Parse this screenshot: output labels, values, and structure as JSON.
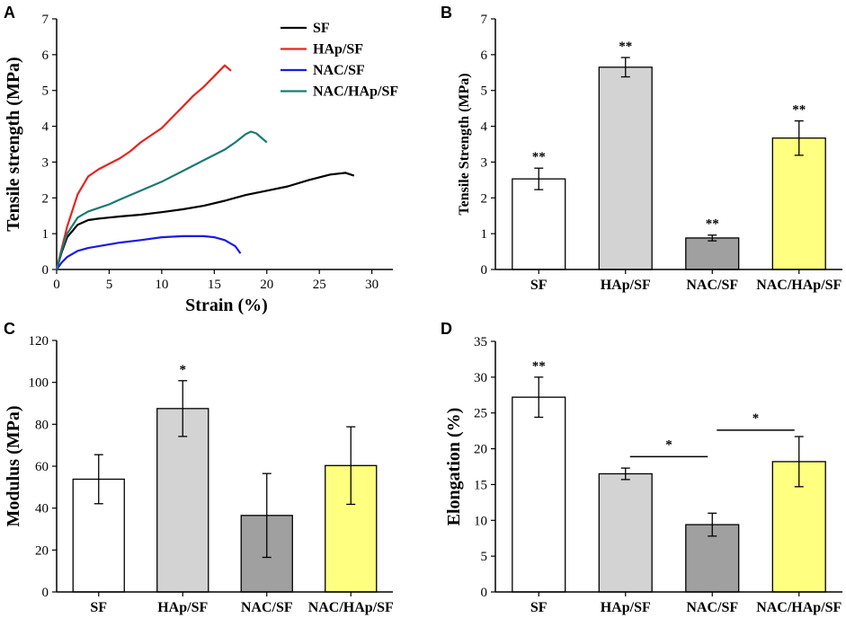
{
  "chart_data": [
    {
      "panel": "A",
      "type": "line",
      "xlabel": "Strain (%)",
      "ylabel": "Tensile strength (MPa)",
      "xlim": [
        0,
        32
      ],
      "ylim": [
        0,
        7
      ],
      "xticks": [
        0,
        5,
        10,
        15,
        20,
        25,
        30
      ],
      "yticks": [
        0,
        1,
        2,
        3,
        4,
        5,
        6,
        7
      ],
      "legend_position": "top-right",
      "series": [
        {
          "name": "SF",
          "color": "#000000",
          "x": [
            0,
            0.5,
            1,
            2,
            3,
            4,
            5,
            6,
            8,
            10,
            12,
            14,
            16,
            18,
            20,
            22,
            24,
            26,
            27.5,
            28.3
          ],
          "y": [
            0,
            0.5,
            0.9,
            1.25,
            1.38,
            1.42,
            1.45,
            1.48,
            1.53,
            1.6,
            1.68,
            1.78,
            1.92,
            2.08,
            2.2,
            2.32,
            2.5,
            2.65,
            2.7,
            2.62
          ]
        },
        {
          "name": "HAp/SF",
          "color": "#e8231d",
          "x": [
            0,
            0.5,
            1,
            2,
            3,
            4,
            5,
            6,
            7,
            8,
            9,
            10,
            11,
            12,
            13,
            14,
            15,
            16,
            16.6
          ],
          "y": [
            0,
            0.6,
            1.2,
            2.1,
            2.6,
            2.8,
            2.95,
            3.1,
            3.3,
            3.55,
            3.75,
            3.95,
            4.25,
            4.55,
            4.85,
            5.1,
            5.4,
            5.7,
            5.55
          ]
        },
        {
          "name": "NAC/SF",
          "color": "#1a1ae6",
          "x": [
            0,
            0.5,
            1,
            2,
            3,
            4,
            5,
            6,
            8,
            10,
            12,
            14,
            15,
            16,
            17,
            17.5
          ],
          "y": [
            0,
            0.2,
            0.35,
            0.52,
            0.6,
            0.65,
            0.7,
            0.75,
            0.82,
            0.9,
            0.93,
            0.93,
            0.9,
            0.82,
            0.65,
            0.45
          ]
        },
        {
          "name": "NAC/HAp/SF",
          "color": "#1a7a72",
          "x": [
            0,
            0.5,
            1,
            2,
            3,
            4,
            5,
            6,
            8,
            10,
            12,
            14,
            16,
            17,
            18,
            18.5,
            19,
            20
          ],
          "y": [
            0,
            0.55,
            1.0,
            1.45,
            1.62,
            1.72,
            1.82,
            1.95,
            2.2,
            2.45,
            2.75,
            3.05,
            3.35,
            3.55,
            3.78,
            3.85,
            3.8,
            3.55
          ]
        }
      ]
    },
    {
      "panel": "B",
      "type": "bar",
      "ylabel": "Tensile Strength (MPa)",
      "ylim": [
        0,
        7
      ],
      "yticks": [
        0,
        1,
        2,
        3,
        4,
        5,
        6,
        7
      ],
      "categories": [
        "SF",
        "HAp/SF",
        "NAC/SF",
        "NAC/HAp/SF"
      ],
      "values": [
        2.53,
        5.65,
        0.88,
        3.67
      ],
      "errors": [
        0.3,
        0.27,
        0.08,
        0.48
      ],
      "colors": [
        "#ffffff",
        "#d3d3d3",
        "#a0a0a0",
        "#ffff80"
      ],
      "significance": [
        "**",
        "**",
        "**",
        "**"
      ]
    },
    {
      "panel": "C",
      "type": "bar",
      "ylabel": "Modulus (MPa)",
      "ylim": [
        0,
        120
      ],
      "yticks": [
        0,
        20,
        40,
        60,
        80,
        100,
        120
      ],
      "categories": [
        "SF",
        "HAp/SF",
        "NAC/SF",
        "NAC/HAp/SF"
      ],
      "values": [
        53.8,
        87.5,
        36.5,
        60.3
      ],
      "errors": [
        11.7,
        13.3,
        20.0,
        18.5
      ],
      "colors": [
        "#ffffff",
        "#d3d3d3",
        "#a0a0a0",
        "#ffff80"
      ],
      "significance": [
        "",
        "*",
        "",
        ""
      ]
    },
    {
      "panel": "D",
      "type": "bar",
      "ylabel": "Elongation (%)",
      "ylim": [
        0,
        35
      ],
      "yticks": [
        0,
        5,
        10,
        15,
        20,
        25,
        30,
        35
      ],
      "categories": [
        "SF",
        "HAp/SF",
        "NAC/SF",
        "NAC/HAp/SF"
      ],
      "values": [
        27.2,
        16.5,
        9.4,
        18.2
      ],
      "errors": [
        2.8,
        0.8,
        1.6,
        3.5
      ],
      "colors": [
        "#ffffff",
        "#d3d3d3",
        "#a0a0a0",
        "#ffff80"
      ],
      "significance": [
        "**",
        "",
        "",
        ""
      ],
      "brackets": [
        {
          "from": 1,
          "to": 2,
          "y": 18.9,
          "label": "*"
        },
        {
          "from": 2,
          "to": 3,
          "y": 22.6,
          "label": "*"
        }
      ]
    }
  ]
}
